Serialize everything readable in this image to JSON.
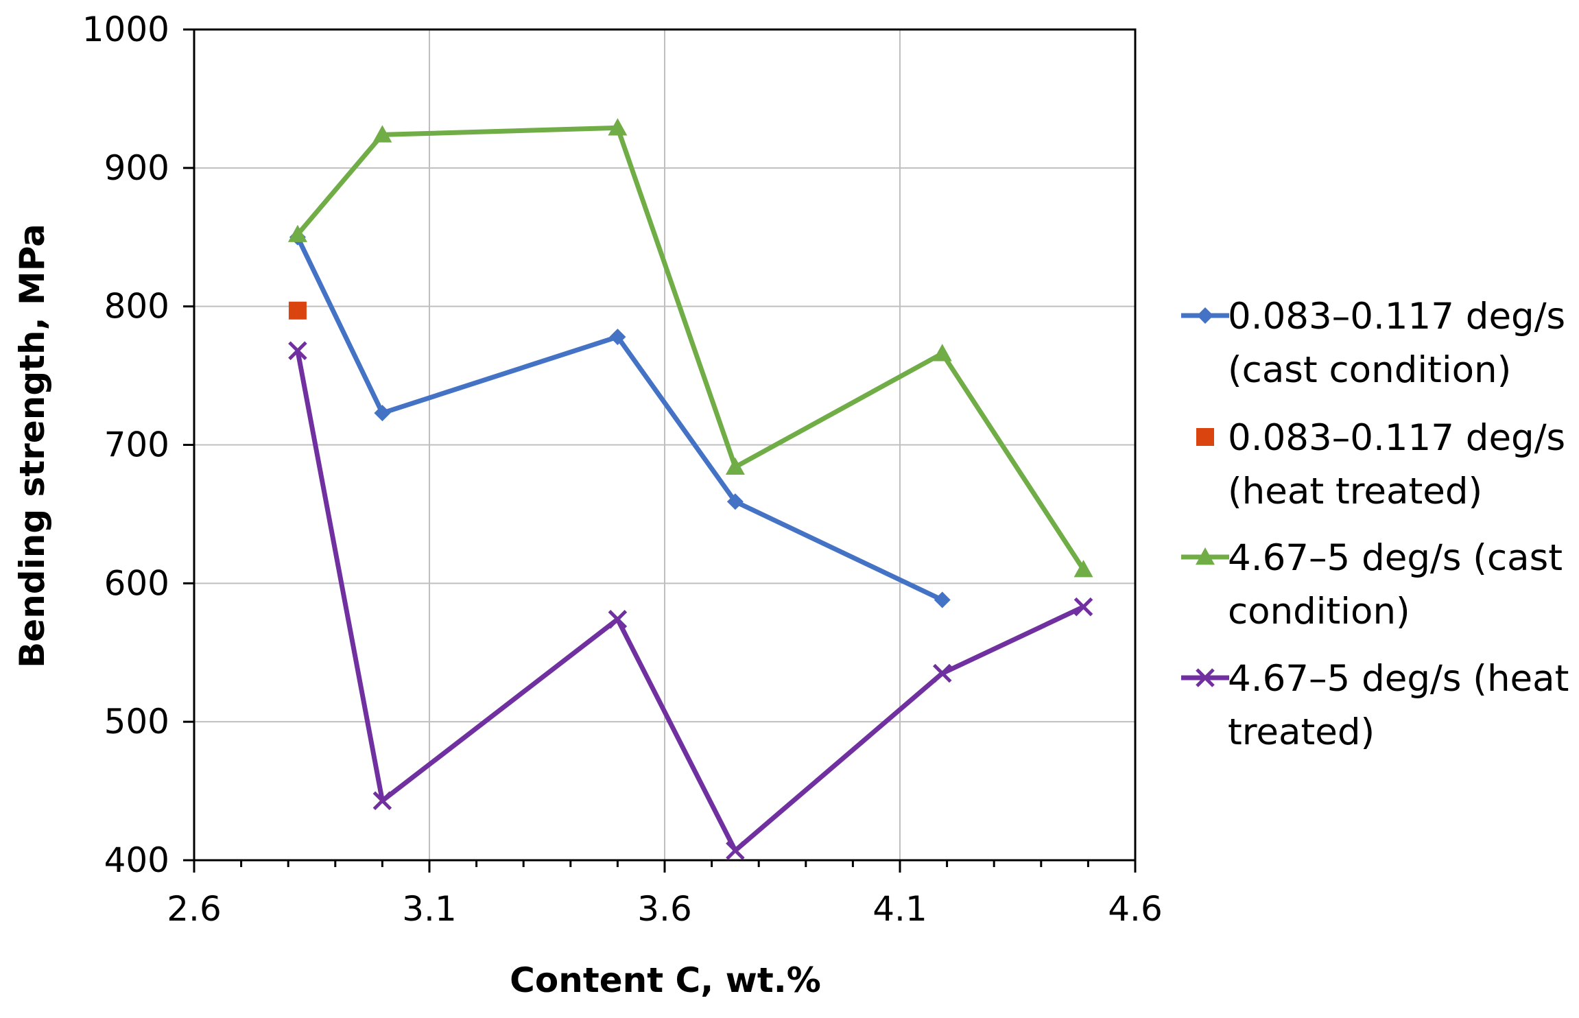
{
  "chart_data": {
    "type": "line",
    "title": "",
    "xlabel": "Content C, wt.%",
    "ylabel": "Bending strength, MPa",
    "xlim": [
      2.6,
      4.6
    ],
    "ylim": [
      400,
      1000
    ],
    "x_major_ticks": [
      2.6,
      3.1,
      3.6,
      4.1,
      4.6
    ],
    "x_tick_labels": [
      "2.6",
      "3.1",
      "3.6",
      "4.1",
      "4.6"
    ],
    "x_minor_step": 0.1,
    "y_major_ticks": [
      400,
      500,
      600,
      700,
      800,
      900,
      1000
    ],
    "y_tick_labels": [
      "400",
      "500",
      "600",
      "700",
      "800",
      "900",
      "1000"
    ],
    "grid": true,
    "legend_position": "right",
    "series": [
      {
        "name": "0.083–0.117 deg/s (cast condition)",
        "legend_lines": [
          "0.083–0.117 deg/s",
          "(cast condition)"
        ],
        "color": "#4472C4",
        "marker": "diamond",
        "line": true,
        "x": [
          2.82,
          3.0,
          3.5,
          3.75,
          4.19
        ],
        "y": [
          850,
          723,
          778,
          659,
          588
        ]
      },
      {
        "name": "0.083–0.117 deg/s (heat treated)",
        "legend_lines": [
          "0.083–0.117 deg/s",
          "(heat treated)"
        ],
        "color": "#D9440F",
        "marker": "square",
        "line": false,
        "x": [
          2.82
        ],
        "y": [
          797
        ]
      },
      {
        "name": "4.67–5 deg/s (cast condition)",
        "legend_lines": [
          "4.67–5 deg/s (cast",
          "condition)"
        ],
        "color": "#70AD47",
        "marker": "triangle",
        "line": true,
        "x": [
          2.82,
          3.0,
          3.5,
          3.75,
          4.19,
          4.49
        ],
        "y": [
          852,
          924,
          929,
          684,
          766,
          610
        ]
      },
      {
        "name": "4.67–5 deg/s (heat treated)",
        "legend_lines": [
          "4.67–5 deg/s (heat",
          "treated)"
        ],
        "color": "#7030A0",
        "marker": "x",
        "line": true,
        "x": [
          2.82,
          3.0,
          3.5,
          3.75,
          4.19,
          4.49
        ],
        "y": [
          768,
          443,
          574,
          407,
          535,
          583
        ]
      }
    ]
  }
}
